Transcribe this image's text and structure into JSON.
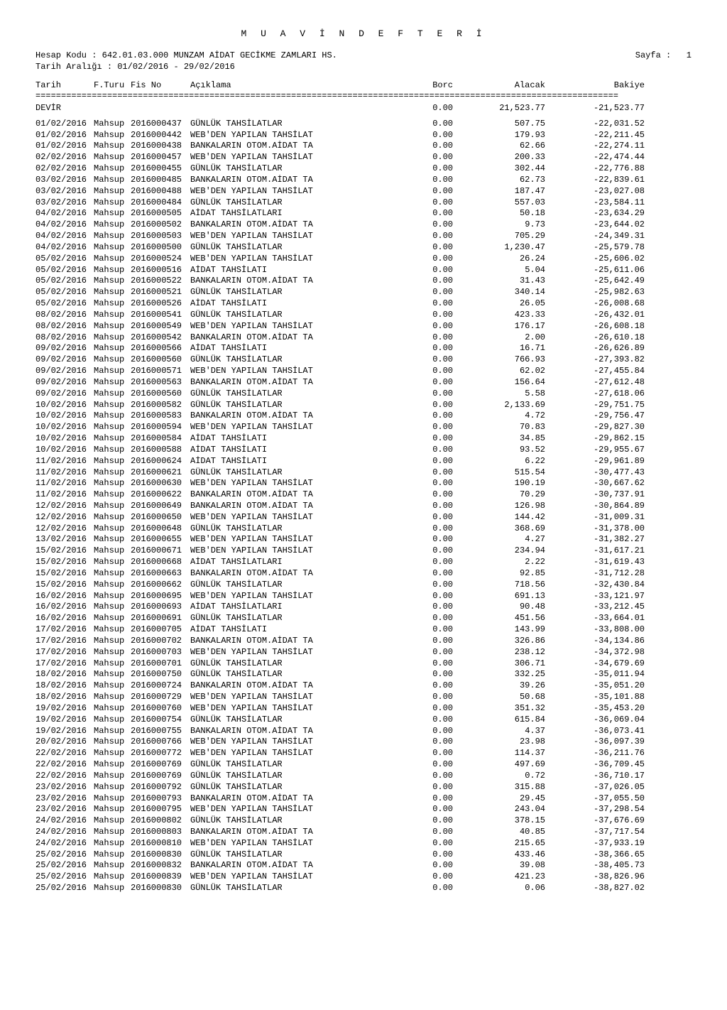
{
  "title": "M U A V İ N   D E F T E R İ",
  "header": {
    "hesapKoduLabel": "Hesap Kodu   :",
    "hesapKodu": "642.01.03.000 MUNZAM AİDAT GECİKME ZAMLARI HS.",
    "tarihAraligiLabel": "Tarih Aralığı :",
    "tarihAraligi": "01/02/2016 - 29/02/2016",
    "sayfaLabel": "Sayfa :",
    "sayfa": "1"
  },
  "columns": {
    "tarih": "Tarih",
    "fturu": "F.Turu",
    "fisno": "Fis No",
    "aciklama": "Açıklama",
    "borc": "Borc",
    "alacak": "Alacak",
    "bakiye": "Bakiye"
  },
  "devir": {
    "label": "DEVİR",
    "borc": "0.00",
    "alacak": "21,523.77",
    "bakiye": "-21,523.77"
  },
  "rows": [
    {
      "tarih": "01/02/2016",
      "fturu": "Mahsup",
      "fisno": "2016000437",
      "acik": "GÜNLÜK TAHSİLATLAR",
      "borc": "0.00",
      "alacak": "507.75",
      "bakiye": "-22,031.52"
    },
    {
      "tarih": "01/02/2016",
      "fturu": "Mahsup",
      "fisno": "2016000442",
      "acik": "WEB'DEN YAPILAN TAHSİLAT",
      "borc": "0.00",
      "alacak": "179.93",
      "bakiye": "-22,211.45"
    },
    {
      "tarih": "01/02/2016",
      "fturu": "Mahsup",
      "fisno": "2016000438",
      "acik": "BANKALARIN OTOM.AİDAT TA",
      "borc": "0.00",
      "alacak": "62.66",
      "bakiye": "-22,274.11"
    },
    {
      "tarih": "02/02/2016",
      "fturu": "Mahsup",
      "fisno": "2016000457",
      "acik": "WEB'DEN YAPILAN TAHSİLAT",
      "borc": "0.00",
      "alacak": "200.33",
      "bakiye": "-22,474.44"
    },
    {
      "tarih": "02/02/2016",
      "fturu": "Mahsup",
      "fisno": "2016000455",
      "acik": "GÜNLÜK TAHSİLATLAR",
      "borc": "0.00",
      "alacak": "302.44",
      "bakiye": "-22,776.88"
    },
    {
      "tarih": "03/02/2016",
      "fturu": "Mahsup",
      "fisno": "2016000485",
      "acik": "BANKALARIN OTOM.AİDAT TA",
      "borc": "0.00",
      "alacak": "62.73",
      "bakiye": "-22,839.61"
    },
    {
      "tarih": "03/02/2016",
      "fturu": "Mahsup",
      "fisno": "2016000488",
      "acik": "WEB'DEN YAPILAN TAHSİLAT",
      "borc": "0.00",
      "alacak": "187.47",
      "bakiye": "-23,027.08"
    },
    {
      "tarih": "03/02/2016",
      "fturu": "Mahsup",
      "fisno": "2016000484",
      "acik": "GÜNLÜK TAHSİLATLAR",
      "borc": "0.00",
      "alacak": "557.03",
      "bakiye": "-23,584.11"
    },
    {
      "tarih": "04/02/2016",
      "fturu": "Mahsup",
      "fisno": "2016000505",
      "acik": "AİDAT TAHSİLATLARI",
      "borc": "0.00",
      "alacak": "50.18",
      "bakiye": "-23,634.29"
    },
    {
      "tarih": "04/02/2016",
      "fturu": "Mahsup",
      "fisno": "2016000502",
      "acik": "BANKALARIN OTOM.AİDAT TA",
      "borc": "0.00",
      "alacak": "9.73",
      "bakiye": "-23,644.02"
    },
    {
      "tarih": "04/02/2016",
      "fturu": "Mahsup",
      "fisno": "2016000503",
      "acik": "WEB'DEN YAPILAN TAHSİLAT",
      "borc": "0.00",
      "alacak": "705.29",
      "bakiye": "-24,349.31"
    },
    {
      "tarih": "04/02/2016",
      "fturu": "Mahsup",
      "fisno": "2016000500",
      "acik": "GÜNLÜK TAHSİLATLAR",
      "borc": "0.00",
      "alacak": "1,230.47",
      "bakiye": "-25,579.78"
    },
    {
      "tarih": "05/02/2016",
      "fturu": "Mahsup",
      "fisno": "2016000524",
      "acik": "WEB'DEN YAPILAN TAHSİLAT",
      "borc": "0.00",
      "alacak": "26.24",
      "bakiye": "-25,606.02"
    },
    {
      "tarih": "05/02/2016",
      "fturu": "Mahsup",
      "fisno": "2016000516",
      "acik": "AİDAT TAHSİLATI",
      "borc": "0.00",
      "alacak": "5.04",
      "bakiye": "-25,611.06"
    },
    {
      "tarih": "05/02/2016",
      "fturu": "Mahsup",
      "fisno": "2016000522",
      "acik": "BANKALARIN OTOM.AİDAT TA",
      "borc": "0.00",
      "alacak": "31.43",
      "bakiye": "-25,642.49"
    },
    {
      "tarih": "05/02/2016",
      "fturu": "Mahsup",
      "fisno": "2016000521",
      "acik": "GÜNLÜK TAHSİLATLAR",
      "borc": "0.00",
      "alacak": "340.14",
      "bakiye": "-25,982.63"
    },
    {
      "tarih": "05/02/2016",
      "fturu": "Mahsup",
      "fisno": "2016000526",
      "acik": "AİDAT TAHSİLATI",
      "borc": "0.00",
      "alacak": "26.05",
      "bakiye": "-26,008.68"
    },
    {
      "tarih": "08/02/2016",
      "fturu": "Mahsup",
      "fisno": "2016000541",
      "acik": "GÜNLÜK TAHSİLATLAR",
      "borc": "0.00",
      "alacak": "423.33",
      "bakiye": "-26,432.01"
    },
    {
      "tarih": "08/02/2016",
      "fturu": "Mahsup",
      "fisno": "2016000549",
      "acik": "WEB'DEN YAPILAN TAHSİLAT",
      "borc": "0.00",
      "alacak": "176.17",
      "bakiye": "-26,608.18"
    },
    {
      "tarih": "08/02/2016",
      "fturu": "Mahsup",
      "fisno": "2016000542",
      "acik": "BANKALARIN OTOM.AİDAT TA",
      "borc": "0.00",
      "alacak": "2.00",
      "bakiye": "-26,610.18"
    },
    {
      "tarih": "09/02/2016",
      "fturu": "Mahsup",
      "fisno": "2016000566",
      "acik": "AİDAT TAHSİLATI",
      "borc": "0.00",
      "alacak": "16.71",
      "bakiye": "-26,626.89"
    },
    {
      "tarih": "09/02/2016",
      "fturu": "Mahsup",
      "fisno": "2016000560",
      "acik": "GÜNLÜK TAHSİLATLAR",
      "borc": "0.00",
      "alacak": "766.93",
      "bakiye": "-27,393.82"
    },
    {
      "tarih": "09/02/2016",
      "fturu": "Mahsup",
      "fisno": "2016000571",
      "acik": "WEB'DEN YAPILAN TAHSİLAT",
      "borc": "0.00",
      "alacak": "62.02",
      "bakiye": "-27,455.84"
    },
    {
      "tarih": "09/02/2016",
      "fturu": "Mahsup",
      "fisno": "2016000563",
      "acik": "BANKALARIN OTOM.AİDAT TA",
      "borc": "0.00",
      "alacak": "156.64",
      "bakiye": "-27,612.48"
    },
    {
      "tarih": "09/02/2016",
      "fturu": "Mahsup",
      "fisno": "2016000560",
      "acik": "GÜNLÜK TAHSİLATLAR",
      "borc": "0.00",
      "alacak": "5.58",
      "bakiye": "-27,618.06"
    },
    {
      "tarih": "10/02/2016",
      "fturu": "Mahsup",
      "fisno": "2016000582",
      "acik": "GÜNLÜK TAHSİLATLAR",
      "borc": "0.00",
      "alacak": "2,133.69",
      "bakiye": "-29,751.75"
    },
    {
      "tarih": "10/02/2016",
      "fturu": "Mahsup",
      "fisno": "2016000583",
      "acik": "BANKALARIN OTOM.AİDAT TA",
      "borc": "0.00",
      "alacak": "4.72",
      "bakiye": "-29,756.47"
    },
    {
      "tarih": "10/02/2016",
      "fturu": "Mahsup",
      "fisno": "2016000594",
      "acik": "WEB'DEN YAPILAN TAHSİLAT",
      "borc": "0.00",
      "alacak": "70.83",
      "bakiye": "-29,827.30"
    },
    {
      "tarih": "10/02/2016",
      "fturu": "Mahsup",
      "fisno": "2016000584",
      "acik": "AİDAT TAHSİLATI",
      "borc": "0.00",
      "alacak": "34.85",
      "bakiye": "-29,862.15"
    },
    {
      "tarih": "10/02/2016",
      "fturu": "Mahsup",
      "fisno": "2016000588",
      "acik": "AİDAT TAHSİLATI",
      "borc": "0.00",
      "alacak": "93.52",
      "bakiye": "-29,955.67"
    },
    {
      "tarih": "11/02/2016",
      "fturu": "Mahsup",
      "fisno": "2016000624",
      "acik": "AİDAT TAHSİLATI",
      "borc": "0.00",
      "alacak": "6.22",
      "bakiye": "-29,961.89"
    },
    {
      "tarih": "11/02/2016",
      "fturu": "Mahsup",
      "fisno": "2016000621",
      "acik": "GÜNLÜK TAHSİLATLAR",
      "borc": "0.00",
      "alacak": "515.54",
      "bakiye": "-30,477.43"
    },
    {
      "tarih": "11/02/2016",
      "fturu": "Mahsup",
      "fisno": "2016000630",
      "acik": "WEB'DEN YAPILAN TAHSİLAT",
      "borc": "0.00",
      "alacak": "190.19",
      "bakiye": "-30,667.62"
    },
    {
      "tarih": "11/02/2016",
      "fturu": "Mahsup",
      "fisno": "2016000622",
      "acik": "BANKALARIN OTOM.AİDAT TA",
      "borc": "0.00",
      "alacak": "70.29",
      "bakiye": "-30,737.91"
    },
    {
      "tarih": "12/02/2016",
      "fturu": "Mahsup",
      "fisno": "2016000649",
      "acik": "BANKALARIN OTOM.AİDAT TA",
      "borc": "0.00",
      "alacak": "126.98",
      "bakiye": "-30,864.89"
    },
    {
      "tarih": "12/02/2016",
      "fturu": "Mahsup",
      "fisno": "2016000650",
      "acik": "WEB'DEN YAPILAN TAHSİLAT",
      "borc": "0.00",
      "alacak": "144.42",
      "bakiye": "-31,009.31"
    },
    {
      "tarih": "12/02/2016",
      "fturu": "Mahsup",
      "fisno": "2016000648",
      "acik": "GÜNLÜK TAHSİLATLAR",
      "borc": "0.00",
      "alacak": "368.69",
      "bakiye": "-31,378.00"
    },
    {
      "tarih": "13/02/2016",
      "fturu": "Mahsup",
      "fisno": "2016000655",
      "acik": "WEB'DEN YAPILAN TAHSİLAT",
      "borc": "0.00",
      "alacak": "4.27",
      "bakiye": "-31,382.27"
    },
    {
      "tarih": "15/02/2016",
      "fturu": "Mahsup",
      "fisno": "2016000671",
      "acik": "WEB'DEN YAPILAN TAHSİLAT",
      "borc": "0.00",
      "alacak": "234.94",
      "bakiye": "-31,617.21"
    },
    {
      "tarih": "15/02/2016",
      "fturu": "Mahsup",
      "fisno": "2016000668",
      "acik": "AİDAT TAHSİLATLARI",
      "borc": "0.00",
      "alacak": "2.22",
      "bakiye": "-31,619.43"
    },
    {
      "tarih": "15/02/2016",
      "fturu": "Mahsup",
      "fisno": "2016000663",
      "acik": "BANKALARIN OTOM.AİDAT TA",
      "borc": "0.00",
      "alacak": "92.85",
      "bakiye": "-31,712.28"
    },
    {
      "tarih": "15/02/2016",
      "fturu": "Mahsup",
      "fisno": "2016000662",
      "acik": "GÜNLÜK TAHSİLATLAR",
      "borc": "0.00",
      "alacak": "718.56",
      "bakiye": "-32,430.84"
    },
    {
      "tarih": "16/02/2016",
      "fturu": "Mahsup",
      "fisno": "2016000695",
      "acik": "WEB'DEN YAPILAN TAHSİLAT",
      "borc": "0.00",
      "alacak": "691.13",
      "bakiye": "-33,121.97"
    },
    {
      "tarih": "16/02/2016",
      "fturu": "Mahsup",
      "fisno": "2016000693",
      "acik": "AİDAT TAHSİLATLARI",
      "borc": "0.00",
      "alacak": "90.48",
      "bakiye": "-33,212.45"
    },
    {
      "tarih": "16/02/2016",
      "fturu": "Mahsup",
      "fisno": "2016000691",
      "acik": "GÜNLÜK TAHSİLATLAR",
      "borc": "0.00",
      "alacak": "451.56",
      "bakiye": "-33,664.01"
    },
    {
      "tarih": "17/02/2016",
      "fturu": "Mahsup",
      "fisno": "2016000705",
      "acik": "AİDAT TAHSİLATI",
      "borc": "0.00",
      "alacak": "143.99",
      "bakiye": "-33,808.00"
    },
    {
      "tarih": "17/02/2016",
      "fturu": "Mahsup",
      "fisno": "2016000702",
      "acik": "BANKALARIN OTOM.AİDAT TA",
      "borc": "0.00",
      "alacak": "326.86",
      "bakiye": "-34,134.86"
    },
    {
      "tarih": "17/02/2016",
      "fturu": "Mahsup",
      "fisno": "2016000703",
      "acik": "WEB'DEN YAPILAN TAHSİLAT",
      "borc": "0.00",
      "alacak": "238.12",
      "bakiye": "-34,372.98"
    },
    {
      "tarih": "17/02/2016",
      "fturu": "Mahsup",
      "fisno": "2016000701",
      "acik": "GÜNLÜK TAHSİLATLAR",
      "borc": "0.00",
      "alacak": "306.71",
      "bakiye": "-34,679.69"
    },
    {
      "tarih": "18/02/2016",
      "fturu": "Mahsup",
      "fisno": "2016000750",
      "acik": "GÜNLÜK TAHSİLATLAR",
      "borc": "0.00",
      "alacak": "332.25",
      "bakiye": "-35,011.94"
    },
    {
      "tarih": "18/02/2016",
      "fturu": "Mahsup",
      "fisno": "2016000724",
      "acik": "BANKALARIN OTOM.AİDAT TA",
      "borc": "0.00",
      "alacak": "39.26",
      "bakiye": "-35,051.20"
    },
    {
      "tarih": "18/02/2016",
      "fturu": "Mahsup",
      "fisno": "2016000729",
      "acik": "WEB'DEN YAPILAN TAHSİLAT",
      "borc": "0.00",
      "alacak": "50.68",
      "bakiye": "-35,101.88"
    },
    {
      "tarih": "19/02/2016",
      "fturu": "Mahsup",
      "fisno": "2016000760",
      "acik": "WEB'DEN YAPILAN TAHSİLAT",
      "borc": "0.00",
      "alacak": "351.32",
      "bakiye": "-35,453.20"
    },
    {
      "tarih": "19/02/2016",
      "fturu": "Mahsup",
      "fisno": "2016000754",
      "acik": "GÜNLÜK TAHSİLATLAR",
      "borc": "0.00",
      "alacak": "615.84",
      "bakiye": "-36,069.04"
    },
    {
      "tarih": "19/02/2016",
      "fturu": "Mahsup",
      "fisno": "2016000755",
      "acik": "BANKALARIN OTOM.AİDAT TA",
      "borc": "0.00",
      "alacak": "4.37",
      "bakiye": "-36,073.41"
    },
    {
      "tarih": "20/02/2016",
      "fturu": "Mahsup",
      "fisno": "2016000766",
      "acik": "WEB'DEN YAPILAN TAHSİLAT",
      "borc": "0.00",
      "alacak": "23.98",
      "bakiye": "-36,097.39"
    },
    {
      "tarih": "22/02/2016",
      "fturu": "Mahsup",
      "fisno": "2016000772",
      "acik": "WEB'DEN YAPILAN TAHSİLAT",
      "borc": "0.00",
      "alacak": "114.37",
      "bakiye": "-36,211.76"
    },
    {
      "tarih": "22/02/2016",
      "fturu": "Mahsup",
      "fisno": "2016000769",
      "acik": "GÜNLÜK TAHSİLATLAR",
      "borc": "0.00",
      "alacak": "497.69",
      "bakiye": "-36,709.45"
    },
    {
      "tarih": "22/02/2016",
      "fturu": "Mahsup",
      "fisno": "2016000769",
      "acik": "GÜNLÜK TAHSİLATLAR",
      "borc": "0.00",
      "alacak": "0.72",
      "bakiye": "-36,710.17"
    },
    {
      "tarih": "23/02/2016",
      "fturu": "Mahsup",
      "fisno": "2016000792",
      "acik": "GÜNLÜK TAHSİLATLAR",
      "borc": "0.00",
      "alacak": "315.88",
      "bakiye": "-37,026.05"
    },
    {
      "tarih": "23/02/2016",
      "fturu": "Mahsup",
      "fisno": "2016000793",
      "acik": "BANKALARIN OTOM.AİDAT TA",
      "borc": "0.00",
      "alacak": "29.45",
      "bakiye": "-37,055.50"
    },
    {
      "tarih": "23/02/2016",
      "fturu": "Mahsup",
      "fisno": "2016000795",
      "acik": "WEB'DEN YAPILAN TAHSİLAT",
      "borc": "0.00",
      "alacak": "243.04",
      "bakiye": "-37,298.54"
    },
    {
      "tarih": "24/02/2016",
      "fturu": "Mahsup",
      "fisno": "2016000802",
      "acik": "GÜNLÜK TAHSİLATLAR",
      "borc": "0.00",
      "alacak": "378.15",
      "bakiye": "-37,676.69"
    },
    {
      "tarih": "24/02/2016",
      "fturu": "Mahsup",
      "fisno": "2016000803",
      "acik": "BANKALARIN OTOM.AİDAT TA",
      "borc": "0.00",
      "alacak": "40.85",
      "bakiye": "-37,717.54"
    },
    {
      "tarih": "24/02/2016",
      "fturu": "Mahsup",
      "fisno": "2016000810",
      "acik": "WEB'DEN YAPILAN TAHSİLAT",
      "borc": "0.00",
      "alacak": "215.65",
      "bakiye": "-37,933.19"
    },
    {
      "tarih": "25/02/2016",
      "fturu": "Mahsup",
      "fisno": "2016000830",
      "acik": "GÜNLÜK TAHSİLATLAR",
      "borc": "0.00",
      "alacak": "433.46",
      "bakiye": "-38,366.65"
    },
    {
      "tarih": "25/02/2016",
      "fturu": "Mahsup",
      "fisno": "2016000832",
      "acik": "BANKALARIN OTOM.AİDAT TA",
      "borc": "0.00",
      "alacak": "39.08",
      "bakiye": "-38,405.73"
    },
    {
      "tarih": "25/02/2016",
      "fturu": "Mahsup",
      "fisno": "2016000839",
      "acik": "WEB'DEN YAPILAN TAHSİLAT",
      "borc": "0.00",
      "alacak": "421.23",
      "bakiye": "-38,826.96"
    },
    {
      "tarih": "25/02/2016",
      "fturu": "Mahsup",
      "fisno": "2016000830",
      "acik": "GÜNLÜK TAHSİLATLAR",
      "borc": "0.00",
      "alacak": "0.06",
      "bakiye": "-38,827.02"
    }
  ]
}
